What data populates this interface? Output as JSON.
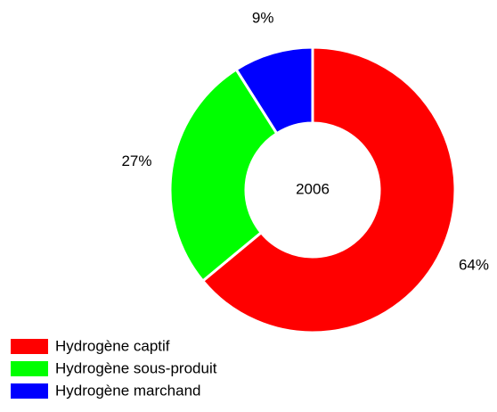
{
  "chart_data": {
    "type": "donut",
    "center_label": "2006",
    "categories": [
      "Hydrogène captif",
      "Hydrogène sous-produit",
      "Hydrogène marchand"
    ],
    "values": [
      64,
      27,
      9
    ],
    "value_labels": [
      "64%",
      "27%",
      "9%"
    ],
    "colors": [
      "#ff0000",
      "#00ff00",
      "#0000ff"
    ],
    "legend": "bottom-left"
  }
}
